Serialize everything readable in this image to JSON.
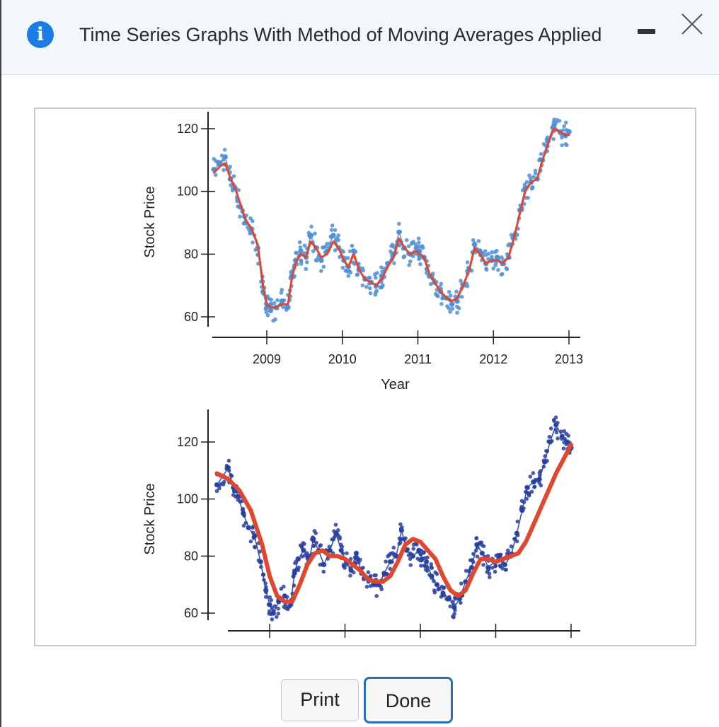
{
  "dialog": {
    "title": "Time Series Graphs With Method of Moving Averages Applied",
    "info_icon": "info-icon",
    "minimize_icon": "minimize-icon",
    "close_icon": "close-icon"
  },
  "buttons": {
    "print_label": "Print",
    "done_label": "Done"
  },
  "colors": {
    "accent": "#1b7ce6",
    "points_top": "#4f8fd6",
    "points_bottom": "#2a3f9e",
    "moving_average": "#e0472e",
    "done_border": "#2a6fb5"
  },
  "chart_data": [
    {
      "type": "line",
      "title": "",
      "xlabel": "Year",
      "ylabel": "Stock Price",
      "xlim": [
        2008.3,
        2013.05
      ],
      "ylim": [
        57,
        127
      ],
      "x_ticks": [
        2009,
        2010,
        2011,
        2012,
        2013
      ],
      "x_tick_labels": [
        "2009",
        "2010",
        "2011",
        "2012",
        "2013"
      ],
      "y_ticks": [
        60,
        80,
        100,
        120
      ],
      "y_tick_labels": [
        "60",
        "80",
        "100",
        "120"
      ],
      "grid": false,
      "legend": "none",
      "series": [
        {
          "role": "observed",
          "style": "points",
          "x": [
            2008.3,
            2008.38,
            2008.45,
            2008.52,
            2008.58,
            2008.65,
            2008.72,
            2008.8,
            2008.88,
            2008.95,
            2009.0,
            2009.05,
            2009.12,
            2009.2,
            2009.28,
            2009.33,
            2009.38,
            2009.45,
            2009.52,
            2009.58,
            2009.65,
            2009.72,
            2009.8,
            2009.88,
            2009.95,
            2010.02,
            2010.08,
            2010.15,
            2010.22,
            2010.3,
            2010.38,
            2010.45,
            2010.52,
            2010.6,
            2010.68,
            2010.75,
            2010.82,
            2010.9,
            2010.98,
            2011.02,
            2011.08,
            2011.15,
            2011.22,
            2011.3,
            2011.38,
            2011.45,
            2011.52,
            2011.6,
            2011.68,
            2011.75,
            2011.82,
            2011.9,
            2011.98,
            2012.05,
            2012.12,
            2012.2,
            2012.28,
            2012.35,
            2012.42,
            2012.5,
            2012.58,
            2012.65,
            2012.72,
            2012.8,
            2012.88,
            2012.95,
            2013.0
          ],
          "y": [
            107,
            109,
            111,
            104,
            101,
            95,
            90,
            88,
            82,
            68,
            63,
            62,
            63,
            65,
            63,
            73,
            78,
            81,
            79,
            86,
            82,
            78,
            81,
            86,
            82,
            78,
            76,
            81,
            75,
            72,
            71,
            70,
            73,
            77,
            80,
            87,
            82,
            80,
            82,
            81,
            79,
            73,
            71,
            68,
            66,
            64,
            65,
            70,
            75,
            83,
            81,
            77,
            78,
            79,
            77,
            79,
            86,
            94,
            101,
            103,
            104,
            110,
            116,
            121,
            119,
            118,
            119
          ]
        },
        {
          "role": "moving-average",
          "style": "line",
          "x": [
            2008.3,
            2008.38,
            2008.45,
            2008.52,
            2008.58,
            2008.65,
            2008.72,
            2008.8,
            2008.88,
            2008.95,
            2009.0,
            2009.05,
            2009.12,
            2009.2,
            2009.28,
            2009.33,
            2009.38,
            2009.45,
            2009.52,
            2009.58,
            2009.65,
            2009.72,
            2009.8,
            2009.88,
            2009.95,
            2010.02,
            2010.08,
            2010.15,
            2010.22,
            2010.3,
            2010.38,
            2010.45,
            2010.52,
            2010.6,
            2010.68,
            2010.75,
            2010.82,
            2010.9,
            2010.98,
            2011.02,
            2011.08,
            2011.15,
            2011.22,
            2011.3,
            2011.38,
            2011.45,
            2011.52,
            2011.6,
            2011.68,
            2011.75,
            2011.82,
            2011.9,
            2011.98,
            2012.05,
            2012.12,
            2012.2,
            2012.28,
            2012.35,
            2012.42,
            2012.5,
            2012.58,
            2012.65,
            2012.72,
            2012.8,
            2012.88,
            2012.95,
            2013.0
          ],
          "y": [
            106,
            108,
            109,
            104,
            101,
            96,
            91,
            88,
            83,
            70,
            64,
            63,
            63,
            64,
            64,
            72,
            77,
            80,
            79,
            84,
            82,
            79,
            80,
            84,
            82,
            78,
            76,
            80,
            75,
            72,
            71,
            70,
            72,
            76,
            79,
            85,
            82,
            80,
            81,
            80,
            79,
            74,
            71,
            68,
            66,
            65,
            66,
            70,
            75,
            82,
            80,
            77,
            78,
            78,
            77,
            79,
            86,
            93,
            100,
            103,
            104,
            110,
            115,
            120,
            119,
            118,
            118
          ]
        }
      ]
    },
    {
      "type": "line",
      "title": "",
      "xlabel": "",
      "ylabel": "Stock Price",
      "xlim": [
        2008.3,
        2013.05
      ],
      "ylim": [
        57,
        131
      ],
      "x_ticks": [
        2009,
        2010,
        2011,
        2012,
        2013
      ],
      "y_ticks": [
        60,
        80,
        100,
        120
      ],
      "y_tick_labels": [
        "60",
        "80",
        "100",
        "120"
      ],
      "grid": false,
      "legend": "none",
      "series": [
        {
          "role": "observed",
          "style": "points",
          "x": [
            2008.3,
            2008.38,
            2008.45,
            2008.52,
            2008.58,
            2008.65,
            2008.72,
            2008.8,
            2008.88,
            2008.95,
            2009.0,
            2009.05,
            2009.12,
            2009.2,
            2009.28,
            2009.33,
            2009.38,
            2009.45,
            2009.52,
            2009.58,
            2009.65,
            2009.72,
            2009.8,
            2009.88,
            2009.95,
            2010.02,
            2010.08,
            2010.15,
            2010.22,
            2010.3,
            2010.38,
            2010.45,
            2010.52,
            2010.6,
            2010.68,
            2010.75,
            2010.82,
            2010.9,
            2010.98,
            2011.02,
            2011.08,
            2011.15,
            2011.22,
            2011.3,
            2011.38,
            2011.45,
            2011.52,
            2011.6,
            2011.68,
            2011.75,
            2011.82,
            2011.9,
            2011.98,
            2012.05,
            2012.12,
            2012.2,
            2012.28,
            2012.35,
            2012.42,
            2012.5,
            2012.58,
            2012.65,
            2012.72,
            2012.8,
            2012.88,
            2012.95,
            2013.0
          ],
          "y": [
            105,
            108,
            111,
            104,
            101,
            95,
            90,
            87,
            78,
            68,
            63,
            60,
            64,
            66,
            63,
            74,
            79,
            82,
            78,
            86,
            82,
            77,
            82,
            88,
            82,
            78,
            75,
            81,
            74,
            72,
            70,
            70,
            74,
            78,
            80,
            89,
            82,
            80,
            82,
            79,
            78,
            73,
            70,
            67,
            65,
            62,
            65,
            71,
            76,
            84,
            81,
            76,
            78,
            80,
            77,
            80,
            88,
            96,
            104,
            106,
            107,
            113,
            120,
            126,
            122,
            120,
            118
          ]
        },
        {
          "role": "moving-average",
          "style": "line",
          "x": [
            2008.3,
            2008.45,
            2008.6,
            2008.75,
            2008.9,
            2009.0,
            2009.1,
            2009.2,
            2009.3,
            2009.4,
            2009.5,
            2009.6,
            2009.7,
            2009.8,
            2009.9,
            2010.0,
            2010.1,
            2010.2,
            2010.3,
            2010.4,
            2010.5,
            2010.6,
            2010.7,
            2010.8,
            2010.9,
            2011.0,
            2011.1,
            2011.2,
            2011.3,
            2011.4,
            2011.5,
            2011.6,
            2011.7,
            2011.8,
            2011.9,
            2012.0,
            2012.1,
            2012.2,
            2012.3,
            2012.4,
            2012.5,
            2012.6,
            2012.7,
            2012.8,
            2012.9,
            2013.0
          ],
          "y": [
            109,
            107,
            103,
            96,
            84,
            73,
            66,
            64,
            64,
            70,
            77,
            81,
            82,
            80,
            80,
            79,
            77,
            75,
            72,
            71,
            71,
            73,
            78,
            84,
            86,
            85,
            82,
            79,
            73,
            68,
            66,
            68,
            74,
            79,
            79,
            78,
            79,
            80,
            81,
            85,
            91,
            97,
            103,
            109,
            114,
            119
          ]
        }
      ]
    }
  ]
}
